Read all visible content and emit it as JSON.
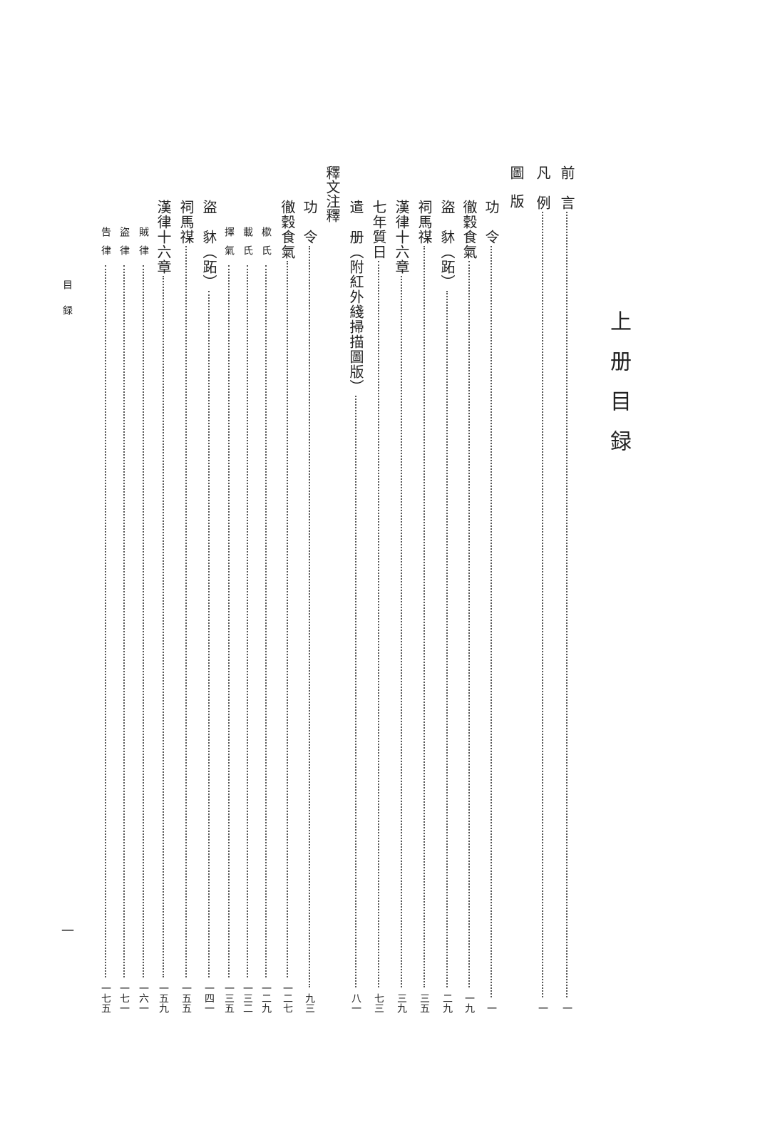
{
  "title": "上册目録",
  "running_head": "目録",
  "folio": "一",
  "entries": [
    {
      "title": "前　言",
      "page": "一",
      "level": 1
    },
    {
      "title": "凡　例",
      "page": "一",
      "level": 1
    },
    {
      "title": "圖　版",
      "page": "",
      "level": 0
    },
    {
      "title": "功　令",
      "page": "一",
      "level": 2
    },
    {
      "title": "徹穀食氣",
      "page": "一九",
      "level": 2
    },
    {
      "title": "盜　䝗（跖）",
      "page": "二九",
      "level": 2
    },
    {
      "title": "祠馬禖",
      "page": "三五",
      "level": 2
    },
    {
      "title": "漢律十六章",
      "page": "三九",
      "level": 2
    },
    {
      "title": "七年質日",
      "page": "七三",
      "level": 2
    },
    {
      "title": "遣　册（附紅外綫掃描圖版）",
      "page": "八一",
      "level": 2
    },
    {
      "title": "釋文注釋",
      "page": "",
      "level": 0
    },
    {
      "title": "功　令",
      "page": "九三",
      "level": 2
    },
    {
      "title": "徹穀食氣",
      "page": "一二七",
      "level": 2
    },
    {
      "title": "㯘氏",
      "page": "一二九",
      "level": 3
    },
    {
      "title": "載氏",
      "page": "一三二",
      "level": 3
    },
    {
      "title": "擇氣",
      "page": "一三五",
      "level": 3
    },
    {
      "title": "盜　䝗（跖）",
      "page": "一四一",
      "level": 2
    },
    {
      "title": "祠馬禖",
      "page": "一五五",
      "level": 2
    },
    {
      "title": "漢律十六章",
      "page": "一五九",
      "level": 2
    },
    {
      "title": "賊律",
      "page": "一六一",
      "level": 3
    },
    {
      "title": "盜律",
      "page": "一七一",
      "level": 3
    },
    {
      "title": "告律",
      "page": "一七五",
      "level": 3
    }
  ]
}
